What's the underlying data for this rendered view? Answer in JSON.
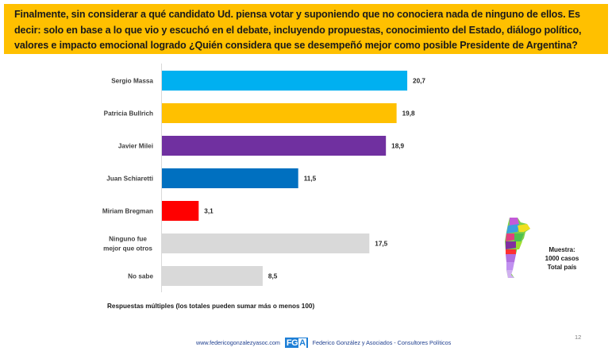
{
  "banner": {
    "question": "Finalmente, sin considerar a qué candidato Ud. piensa votar y suponiendo que no conociera nada de ninguno de ellos. Es decir: solo en base a lo que vio y escuchó en el debate, incluyendo propuestas, conocimiento del Estado, diálogo político, valores e impacto emocional logrado ¿Quién considera que se desempeñó mejor como posible Presidente de Argentina?"
  },
  "chart_data": {
    "type": "bar",
    "orientation": "horizontal",
    "title": "¿Quién considera que se desempeñó mejor como posible Presidente de Argentina?",
    "xlabel": "",
    "ylabel": "",
    "xlim": [
      0,
      25
    ],
    "grid": false,
    "legend": "none",
    "categories": [
      "Sergio Massa",
      "Patricia Bullrich",
      "Javier Milei",
      "Juan Schiaretti",
      "Miriam Bregman",
      "Ninguno fue mejor que otros",
      "No sabe"
    ],
    "category_lines": [
      [
        "Sergio Massa"
      ],
      [
        "Patricia Bullrich"
      ],
      [
        "Javier Milei"
      ],
      [
        "Juan Schiaretti"
      ],
      [
        "Miriam Bregman"
      ],
      [
        "Ninguno fue",
        "mejor que otros"
      ],
      [
        "No sabe"
      ]
    ],
    "values": [
      20.7,
      19.8,
      18.9,
      11.5,
      3.1,
      17.5,
      8.5
    ],
    "value_labels": [
      "20,7",
      "19,8",
      "18,9",
      "11,5",
      "3,1",
      "17,5",
      "8,5"
    ],
    "colors": [
      "#00B0F0",
      "#FFC000",
      "#7030A0",
      "#0070C0",
      "#FF0000",
      "#D9D9D9",
      "#D9D9D9"
    ]
  },
  "note": "Respuestas múltiples (los totales pueden sumar más  o menos 100)",
  "sample": {
    "line1": "Muestra:",
    "line2": "1000 casos",
    "line3": "Total país"
  },
  "footer": {
    "website": "www.federicogonzalezyasoc.com",
    "logo_text": "FG",
    "logo_accent": "A",
    "company": "Federico González y Asociados - Consultores Políticos"
  },
  "page_number": "12"
}
